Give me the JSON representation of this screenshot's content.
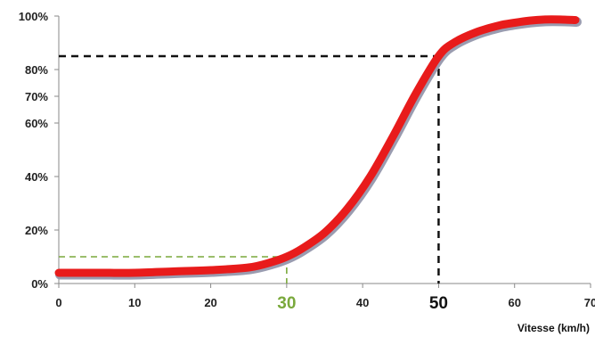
{
  "chart_data": {
    "type": "line",
    "xlabel": "Vitesse (km/h)",
    "ylabel": "",
    "xlim": [
      0,
      70
    ],
    "ylim": [
      0,
      100
    ],
    "x_ticks": [
      "0",
      "10",
      "20",
      "30",
      "40",
      "50",
      "60",
      "70"
    ],
    "y_ticks": [
      "0%",
      "20%",
      "40%",
      "60%",
      "70%",
      "80%",
      "100%"
    ],
    "series": [
      {
        "x": [
          0,
          5,
          10,
          15,
          20,
          25,
          28,
          30,
          32,
          35,
          38,
          41,
          44,
          47,
          50,
          52,
          55,
          58,
          60,
          62,
          64,
          66,
          68
        ],
        "y": [
          4,
          4,
          4,
          4.5,
          5,
          6,
          8,
          10,
          13,
          19,
          28,
          40,
          55,
          71,
          85,
          90,
          94,
          96.5,
          97.5,
          98.3,
          98.7,
          98.7,
          98.5
        ],
        "color": "#e81b1b"
      }
    ],
    "markers": [
      {
        "x": 30,
        "y": 10,
        "label": "30",
        "color": "#7aa93c"
      },
      {
        "x": 50,
        "y": 85,
        "label": "50",
        "color": "#111111"
      }
    ],
    "grid": false
  }
}
